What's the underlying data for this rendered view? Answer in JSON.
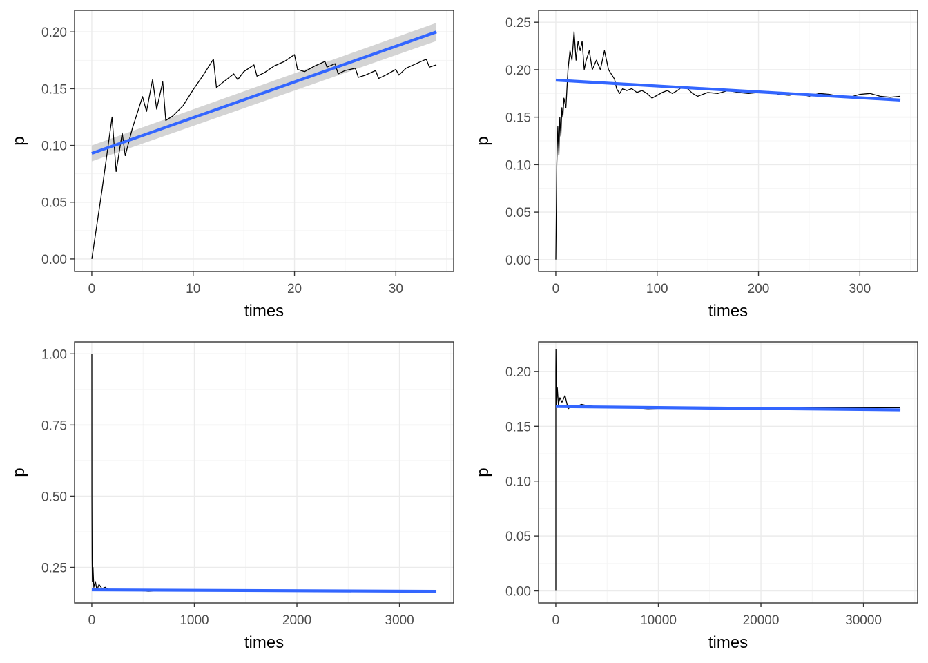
{
  "figure": {
    "style": {
      "background": "#ffffff",
      "panel_border": "#333333",
      "grid_major": "#ebebeb",
      "grid_minor": "#f4f4f4",
      "series_line": "#000000",
      "smooth_line": "#3366ff",
      "confidence_band": "#cccccc",
      "tick_label": "#4d4d4d"
    }
  },
  "chart_data": [
    {
      "type": "line",
      "xlabel": "times",
      "ylabel": "p",
      "xlim": [
        -1.7,
        35.7
      ],
      "ylim": [
        -0.011,
        0.219
      ],
      "x_ticks": [
        0,
        10,
        20,
        30
      ],
      "x_tick_labels": [
        "0",
        "10",
        "20",
        "30"
      ],
      "y_ticks": [
        0.0,
        0.05,
        0.1,
        0.15,
        0.2
      ],
      "y_tick_labels": [
        "0.00",
        "0.05",
        "0.10",
        "0.15",
        "0.20"
      ],
      "grid": true,
      "series": [
        {
          "kind": "running_proportion",
          "x": [
            0,
            1,
            2,
            2.4,
            3,
            3.3,
            4,
            5,
            5.4,
            6,
            6.4,
            7,
            7.3,
            8,
            9,
            10,
            11,
            12,
            12.3,
            13,
            14,
            14.4,
            15,
            16,
            16.3,
            17,
            18,
            19,
            20,
            20.3,
            21,
            22,
            23,
            23.2,
            24,
            24.3,
            25,
            26,
            26.3,
            27,
            28,
            28.3,
            29,
            30,
            30.3,
            31,
            32,
            33,
            33.3,
            34
          ],
          "y": [
            0.0,
            0.06,
            0.125,
            0.077,
            0.111,
            0.091,
            0.115,
            0.143,
            0.13,
            0.158,
            0.132,
            0.156,
            0.122,
            0.126,
            0.135,
            0.149,
            0.162,
            0.176,
            0.151,
            0.156,
            0.163,
            0.158,
            0.165,
            0.171,
            0.161,
            0.164,
            0.17,
            0.174,
            0.18,
            0.167,
            0.165,
            0.17,
            0.174,
            0.169,
            0.172,
            0.163,
            0.166,
            0.168,
            0.16,
            0.162,
            0.166,
            0.159,
            0.162,
            0.167,
            0.162,
            0.168,
            0.172,
            0.176,
            0.169,
            0.171
          ]
        },
        {
          "kind": "linear_fit",
          "x": [
            0,
            34
          ],
          "y": [
            0.093,
            0.2
          ],
          "band_lower": [
            0.086,
            0.192
          ],
          "band_upper": [
            0.1,
            0.208
          ]
        }
      ]
    },
    {
      "type": "line",
      "xlabel": "times",
      "ylabel": "p",
      "xlim": [
        -17,
        357
      ],
      "ylim": [
        -0.0125,
        0.2625
      ],
      "x_ticks": [
        0,
        100,
        200,
        300
      ],
      "x_tick_labels": [
        "0",
        "100",
        "200",
        "300"
      ],
      "y_ticks": [
        0.0,
        0.05,
        0.1,
        0.15,
        0.2,
        0.25
      ],
      "y_tick_labels": [
        "0.00",
        "0.05",
        "0.10",
        "0.15",
        "0.20",
        "0.25"
      ],
      "grid": true,
      "series": [
        {
          "kind": "running_proportion",
          "x": [
            0,
            1,
            2,
            3,
            4,
            5,
            6,
            7,
            8,
            10,
            12,
            14,
            16,
            18,
            20,
            22,
            24,
            26,
            28,
            30,
            33,
            36,
            40,
            44,
            48,
            50,
            52,
            55,
            58,
            60,
            63,
            66,
            70,
            75,
            80,
            85,
            90,
            95,
            100,
            105,
            110,
            115,
            120,
            125,
            130,
            135,
            140,
            150,
            160,
            170,
            180,
            190,
            200,
            210,
            220,
            230,
            240,
            250,
            260,
            270,
            280,
            290,
            300,
            310,
            320,
            330,
            340
          ],
          "y": [
            0.0,
            0.1,
            0.14,
            0.11,
            0.15,
            0.13,
            0.16,
            0.15,
            0.17,
            0.16,
            0.2,
            0.22,
            0.21,
            0.24,
            0.21,
            0.23,
            0.22,
            0.23,
            0.2,
            0.21,
            0.22,
            0.2,
            0.21,
            0.2,
            0.22,
            0.21,
            0.2,
            0.195,
            0.19,
            0.18,
            0.175,
            0.18,
            0.178,
            0.18,
            0.176,
            0.178,
            0.175,
            0.17,
            0.173,
            0.176,
            0.178,
            0.175,
            0.178,
            0.182,
            0.18,
            0.175,
            0.172,
            0.176,
            0.175,
            0.178,
            0.176,
            0.175,
            0.176,
            0.177,
            0.174,
            0.173,
            0.175,
            0.172,
            0.175,
            0.174,
            0.172,
            0.171,
            0.174,
            0.175,
            0.172,
            0.171,
            0.172
          ]
        },
        {
          "kind": "linear_fit",
          "x": [
            0,
            340
          ],
          "y": [
            0.189,
            0.168
          ]
        }
      ]
    },
    {
      "type": "line",
      "xlabel": "times",
      "ylabel": "p",
      "xlim": [
        -168,
        3528
      ],
      "ylim": [
        0.125,
        1.042
      ],
      "x_ticks": [
        0,
        1000,
        2000,
        3000
      ],
      "x_tick_labels": [
        "0",
        "1000",
        "2000",
        "3000"
      ],
      "y_ticks": [
        0.25,
        0.5,
        0.75,
        1.0
      ],
      "y_tick_labels": [
        "0.25",
        "0.50",
        "0.75",
        "1.00"
      ],
      "grid": true,
      "series": [
        {
          "kind": "running_proportion",
          "x": [
            0,
            1,
            3,
            6,
            12,
            20,
            35,
            50,
            70,
            100,
            130,
            170,
            220,
            300,
            400,
            550,
            700,
            900,
            1200,
            1600,
            2000,
            2500,
            3000,
            3360
          ],
          "y": [
            1.0,
            0.5,
            0.28,
            0.2,
            0.25,
            0.18,
            0.2,
            0.17,
            0.19,
            0.175,
            0.18,
            0.17,
            0.172,
            0.168,
            0.17,
            0.166,
            0.168,
            0.167,
            0.168,
            0.167,
            0.167,
            0.167,
            0.167,
            0.167
          ]
        },
        {
          "kind": "linear_fit",
          "x": [
            0,
            3360
          ],
          "y": [
            0.171,
            0.166
          ]
        }
      ]
    },
    {
      "type": "line",
      "xlabel": "times",
      "ylabel": "p",
      "xlim": [
        -1680,
        35280
      ],
      "ylim": [
        -0.011,
        0.227
      ],
      "x_ticks": [
        0,
        10000,
        20000,
        30000
      ],
      "x_tick_labels": [
        "0",
        "10000",
        "20000",
        "30000"
      ],
      "y_ticks": [
        0.0,
        0.05,
        0.1,
        0.15,
        0.2
      ],
      "y_tick_labels": [
        "0.00",
        "0.05",
        "0.10",
        "0.15",
        "0.20"
      ],
      "grid": true,
      "series": [
        {
          "kind": "running_proportion",
          "x": [
            0,
            5,
            15,
            40,
            80,
            150,
            250,
            400,
            600,
            900,
            1200,
            1600,
            2000,
            2500,
            3000,
            4000,
            6000,
            9000,
            12000,
            16000,
            20000,
            25000,
            30000,
            33600
          ],
          "y": [
            0.0,
            0.2,
            0.22,
            0.19,
            0.17,
            0.185,
            0.17,
            0.176,
            0.172,
            0.178,
            0.166,
            0.169,
            0.168,
            0.17,
            0.169,
            0.168,
            0.168,
            0.166,
            0.167,
            0.167,
            0.167,
            0.167,
            0.167,
            0.167
          ]
        },
        {
          "kind": "linear_fit",
          "x": [
            0,
            33600
          ],
          "y": [
            0.168,
            0.165
          ]
        }
      ]
    }
  ]
}
